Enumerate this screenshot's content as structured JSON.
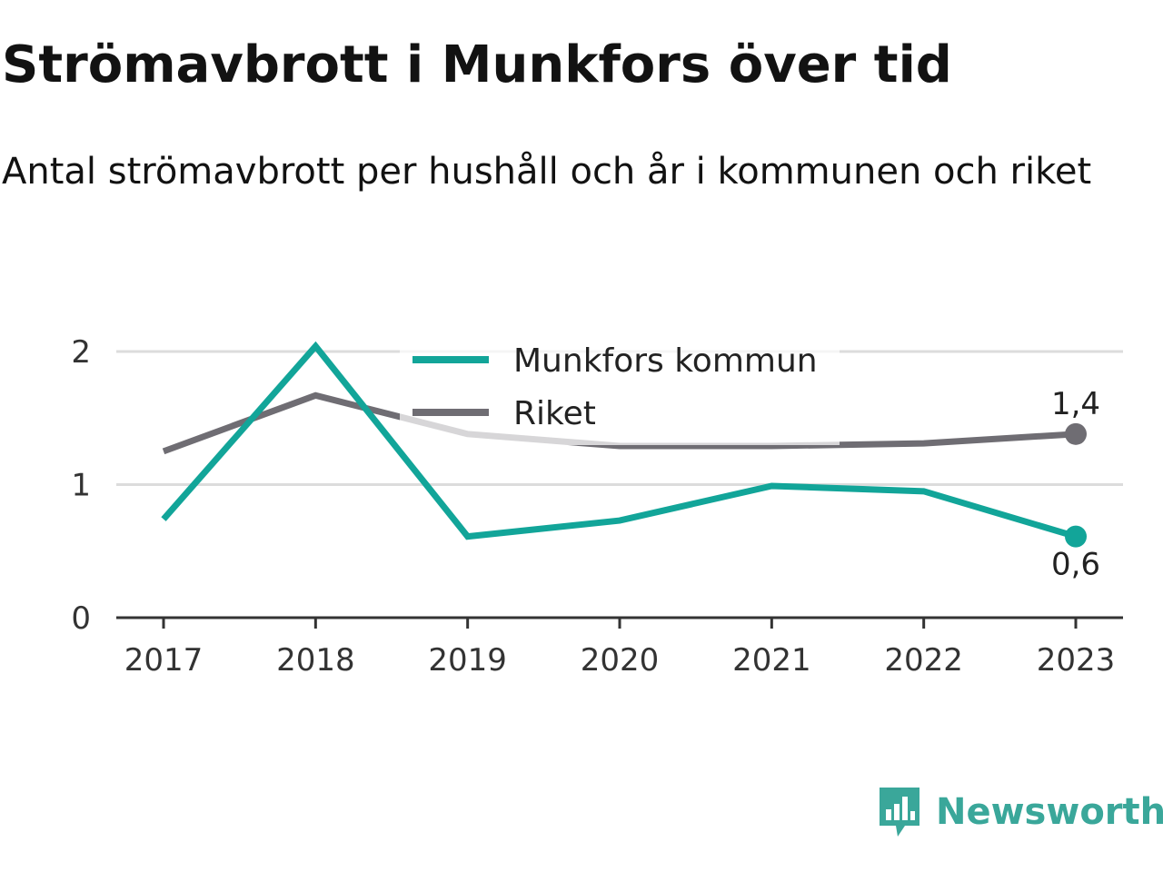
{
  "title": "Strömavbrott i Munkfors över tid",
  "subtitle": "Antal strömavbrott per hushåll och år i kommunen och riket",
  "brand": {
    "name": "Newsworthy",
    "icon": "newsworthy-logo-icon",
    "color": "#3aa79a"
  },
  "chart_data": {
    "type": "line",
    "title": "Strömavbrott i Munkfors över tid",
    "subtitle": "Antal strömavbrott per hushåll och år i kommunen och riket",
    "x": [
      "2017",
      "2018",
      "2019",
      "2020",
      "2021",
      "2022",
      "2023"
    ],
    "series": [
      {
        "name": "Munkfors kommun",
        "color": "#12a599",
        "values": [
          0.74,
          2.04,
          0.61,
          0.73,
          0.99,
          0.95,
          0.61
        ],
        "end_label": "0,6"
      },
      {
        "name": "Riket",
        "color": "#6f6d73",
        "values": [
          1.25,
          1.67,
          1.38,
          1.29,
          1.29,
          1.31,
          1.38
        ],
        "end_label": "1,4"
      }
    ],
    "ylim": [
      0,
      2
    ],
    "yticks": [
      {
        "value": 0,
        "label": "0"
      },
      {
        "value": 1,
        "label": "1"
      },
      {
        "value": 2,
        "label": "2"
      }
    ],
    "grid": true,
    "legend": "top-center",
    "xlabel": "",
    "ylabel": ""
  }
}
